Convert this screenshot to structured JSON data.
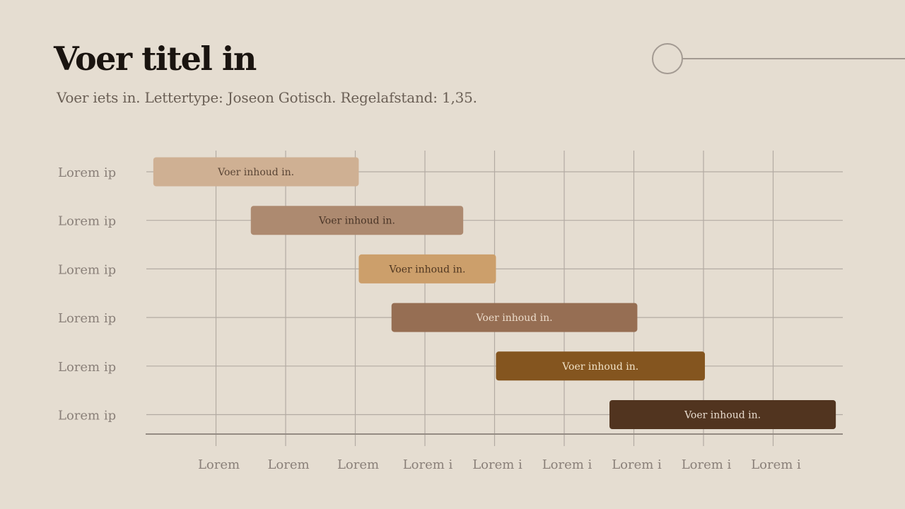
{
  "title": "Voer titel in",
  "subtitle": "Voer iets in. Lettertype: Joseon Gotisch. Regelafstand: 1,35.",
  "chart_data": {
    "type": "gantt",
    "columns": [
      "Lorem",
      "Lorem",
      "Lorem",
      "Lorem i",
      "Lorem i",
      "Lorem i",
      "Lorem i",
      "Lorem i",
      "Lorem i"
    ],
    "rows": [
      "Lorem ip",
      "Lorem ip",
      "Lorem ip",
      "Lorem ip",
      "Lorem ip",
      "Lorem ip"
    ],
    "grid": true,
    "tasks": [
      {
        "label": "Voer inhoud in.",
        "start": 0.1,
        "end": 3.05,
        "color": "#cfb093",
        "text_color": "#5a4535"
      },
      {
        "label": "Voer inhoud in.",
        "start": 1.5,
        "end": 4.55,
        "color": "#ad8a70",
        "text_color": "#4a3527"
      },
      {
        "label": "Voer inhoud in.",
        "start": 3.05,
        "end": 5.02,
        "color": "#cc9f6b",
        "text_color": "#4e3620"
      },
      {
        "label": "Voer inhoud in.",
        "start": 3.52,
        "end": 7.05,
        "color": "#966e53",
        "text_color": "#ecdccb"
      },
      {
        "label": "Voer inhoud in.",
        "start": 5.02,
        "end": 8.02,
        "color": "#84551f",
        "text_color": "#f1e2c7"
      },
      {
        "label": "Voer inhoud in.",
        "start": 6.65,
        "end": 9.9,
        "color": "#51341f",
        "text_color": "#e8dccf"
      }
    ]
  },
  "colors": {
    "background": "#e5ddd1",
    "grid": "#b3aba3",
    "axis": "#948b83",
    "label": "#8a8079",
    "title": "#1a1410"
  },
  "decoration": {
    "icon": "circle-line-ornament"
  }
}
